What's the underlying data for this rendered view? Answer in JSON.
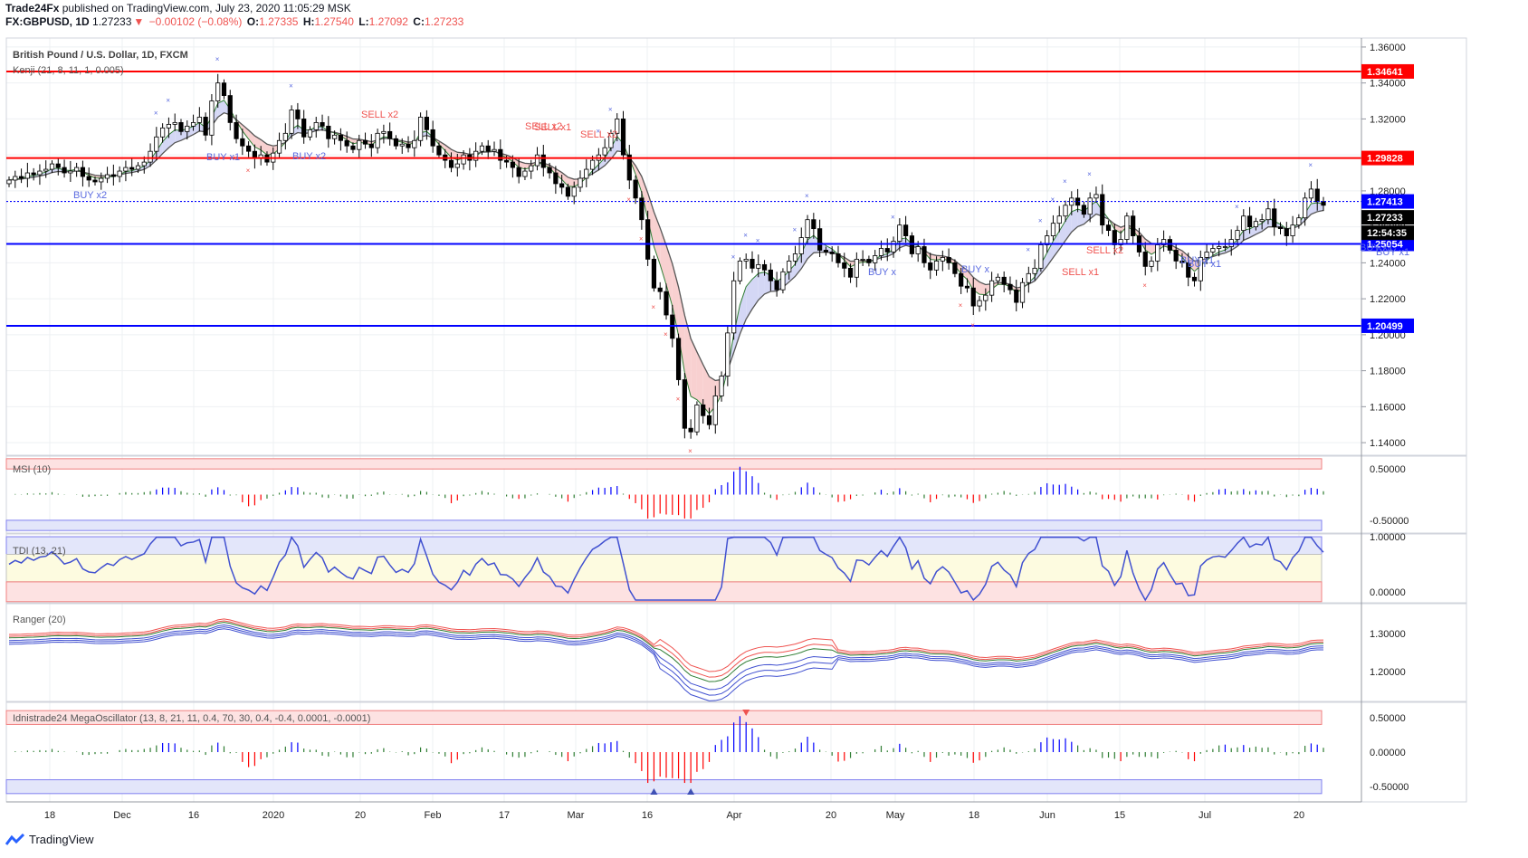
{
  "header": {
    "publisher": "Trade24Fx",
    "published_text": "published on TradingView.com, July 23, 2020 11:05:29 MSK",
    "symbol": "FX:GBPUSD, 1D",
    "last": "1.27233",
    "change": "−0.00102 (−0.08%)",
    "O": "1.27335",
    "H": "1.27540",
    "L": "1.27092",
    "C": "1.27233"
  },
  "main_title": "British Pound / U.S. Dollar, 1D, FXCM",
  "indicator_label": "Kenji (21, 8, 11, 1, 0.005)",
  "footer_brand": "TradingView",
  "colors": {
    "bull": "#ffffff",
    "bear": "#000000",
    "resistance": "#ff0000",
    "support": "#0000ff",
    "buy": "#0000ff",
    "sell": "#ff0000"
  },
  "chart_data": [
    {
      "type": "candlestick",
      "title": "British Pound / U.S. Dollar, 1D, FXCM",
      "x_ticks": [
        "18",
        "Dec",
        "16",
        "2020",
        "20",
        "Feb",
        "17",
        "Mar",
        "16",
        "Apr",
        "20",
        "May",
        "18",
        "Jun",
        "15",
        "Jul",
        "20"
      ],
      "y_ticks": [
        "1.36000",
        "1.34000",
        "1.32000",
        "1.30000",
        "1.28000",
        "1.26000",
        "1.24000",
        "1.22000",
        "1.20000",
        "1.18000",
        "1.16000",
        "1.14000"
      ],
      "ylim": [
        1.133,
        1.365
      ],
      "closes": [
        1.286,
        1.288,
        1.287,
        1.29,
        1.289,
        1.291,
        1.292,
        1.295,
        1.293,
        1.29,
        1.291,
        1.293,
        1.288,
        1.286,
        1.285,
        1.287,
        1.289,
        1.288,
        1.291,
        1.293,
        1.292,
        1.294,
        1.296,
        1.302,
        1.31,
        1.315,
        1.317,
        1.318,
        1.313,
        1.316,
        1.318,
        1.321,
        1.311,
        1.33,
        1.34,
        1.333,
        1.318,
        1.309,
        1.305,
        1.302,
        1.298,
        1.3,
        1.296,
        1.301,
        1.308,
        1.312,
        1.325,
        1.32,
        1.31,
        1.314,
        1.318,
        1.316,
        1.309,
        1.311,
        1.308,
        1.305,
        1.303,
        1.308,
        1.306,
        1.304,
        1.312,
        1.313,
        1.309,
        1.305,
        1.306,
        1.304,
        1.308,
        1.321,
        1.314,
        1.305,
        1.3,
        1.297,
        1.293,
        1.295,
        1.3,
        1.297,
        1.302,
        1.305,
        1.302,
        1.303,
        1.297,
        1.296,
        1.293,
        1.288,
        1.291,
        1.294,
        1.3,
        1.293,
        1.29,
        1.284,
        1.282,
        1.277,
        1.282,
        1.287,
        1.292,
        1.297,
        1.3,
        1.304,
        1.312,
        1.32,
        1.3,
        1.286,
        1.276,
        1.264,
        1.242,
        1.226,
        1.224,
        1.211,
        1.198,
        1.175,
        1.148,
        1.146,
        1.161,
        1.155,
        1.15,
        1.166,
        1.177,
        1.201,
        1.23,
        1.241,
        1.242,
        1.237,
        1.239,
        1.236,
        1.23,
        1.225,
        1.235,
        1.241,
        1.245,
        1.254,
        1.264,
        1.259,
        1.247,
        1.246,
        1.245,
        1.24,
        1.237,
        1.232,
        1.242,
        1.242,
        1.24,
        1.244,
        1.248,
        1.246,
        1.252,
        1.261,
        1.255,
        1.245,
        1.249,
        1.24,
        1.236,
        1.241,
        1.243,
        1.24,
        1.234,
        1.227,
        1.226,
        1.216,
        1.219,
        1.222,
        1.23,
        1.232,
        1.228,
        1.225,
        1.218,
        1.229,
        1.234,
        1.237,
        1.25,
        1.255,
        1.262,
        1.266,
        1.272,
        1.276,
        1.272,
        1.267,
        1.276,
        1.278,
        1.261,
        1.258,
        1.25,
        1.253,
        1.266,
        1.255,
        1.246,
        1.238,
        1.241,
        1.25,
        1.253,
        1.247,
        1.241,
        1.24,
        1.232,
        1.23,
        1.243,
        1.246,
        1.248,
        1.249,
        1.249,
        1.253,
        1.258,
        1.266,
        1.26,
        1.263,
        1.264,
        1.27,
        1.26,
        1.259,
        1.255,
        1.261,
        1.265,
        1.276,
        1.281,
        1.274,
        1.272
      ]
    },
    {
      "type": "line",
      "series": [
        {
          "name": "Resistance",
          "values": [
            1.34641,
            1.29828
          ]
        },
        {
          "name": "Support",
          "values": [
            1.27413,
            1.25054,
            1.20499
          ]
        }
      ]
    },
    {
      "type": "bar",
      "title": "MSI (10)",
      "y_ticks": [
        "0.50000",
        "-0.50000"
      ],
      "ylim": [
        -0.75,
        0.75
      ]
    },
    {
      "type": "line",
      "title": "TDI (13, 21)",
      "y_ticks": [
        "1.00000",
        "0.00000"
      ],
      "ylim": [
        -0.2,
        1.05
      ]
    },
    {
      "type": "line",
      "title": "Ranger (20)",
      "y_ticks": [
        "1.30000",
        "1.20000"
      ],
      "ylim": [
        1.12,
        1.38
      ]
    },
    {
      "type": "bar",
      "title": "Idnistrade24 MegaOscillator (13, 8, 21, 11, 0.4, 70, 30, 0.4, -0.4, 0.0001, -0.0001)",
      "y_ticks": [
        "0.50000",
        "0.00000",
        "-0.50000"
      ],
      "ylim": [
        -0.72,
        0.72
      ]
    }
  ],
  "price_labels": {
    "r1": "1.34641",
    "r2": "1.29828",
    "s1": "1.27413",
    "last": "1.27233",
    "timer": "12:54:35",
    "s2": "1.25054",
    "s3": "1.20499"
  },
  "signal_labels": {
    "sell1": "SELL x2",
    "sell2": "SELL x2",
    "sell3": "SELL x1",
    "sell4": "SELL x2",
    "sell5": "SELL x2",
    "sell6": "SELL x1",
    "buy1": "BUY x2",
    "buy2": "BUY x1",
    "buy3": "BUY x2",
    "buy4": "BUY x",
    "buy5": "BUY x",
    "buy6": "BUY x1",
    "buy7": "BUY x1",
    "buy8": "BUY x1",
    "buy9": "BUY x1"
  }
}
